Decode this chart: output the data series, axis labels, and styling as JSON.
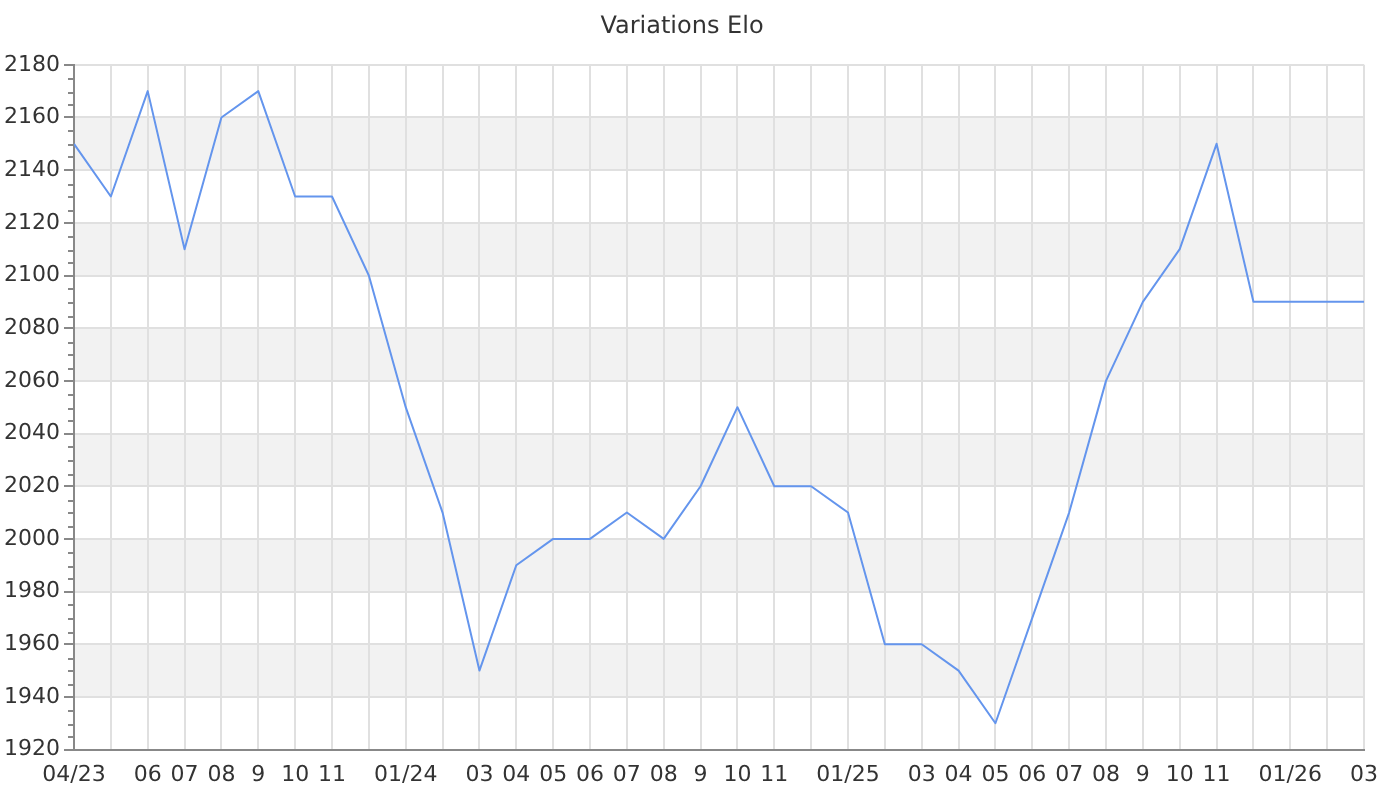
{
  "chart_data": {
    "type": "line",
    "title": "Variations Elo",
    "categories": [
      "04/23",
      null,
      "06",
      "07",
      "08",
      "9",
      "10",
      "11",
      null,
      "01/24",
      null,
      "03",
      "04",
      "05",
      "06",
      "07",
      "08",
      "9",
      "10",
      "11",
      null,
      "01/25",
      null,
      "03",
      "04",
      "05",
      "06",
      "07",
      "08",
      "9",
      "10",
      "11",
      null,
      "01/26",
      null,
      "03"
    ],
    "series": [
      {
        "color": "#6495ed",
        "values": [
          2150,
          2130,
          2170,
          2110,
          2160,
          2170,
          2130,
          2130,
          2100,
          2050,
          2010,
          1950,
          1990,
          2000,
          2000,
          2010,
          2000,
          2020,
          2050,
          2020,
          2020,
          2010,
          1960,
          1960,
          1950,
          1930,
          1970,
          2010,
          2060,
          2090,
          2110,
          2150,
          2090,
          2090,
          2090,
          2090
        ]
      }
    ],
    "ylim": [
      1920,
      2180
    ],
    "yticks": [
      1920,
      1940,
      1960,
      1980,
      2000,
      2020,
      2040,
      2060,
      2080,
      2100,
      2120,
      2140,
      2160,
      2180
    ],
    "grid": true,
    "legend": false,
    "marker": "none",
    "line_style": "solid"
  }
}
